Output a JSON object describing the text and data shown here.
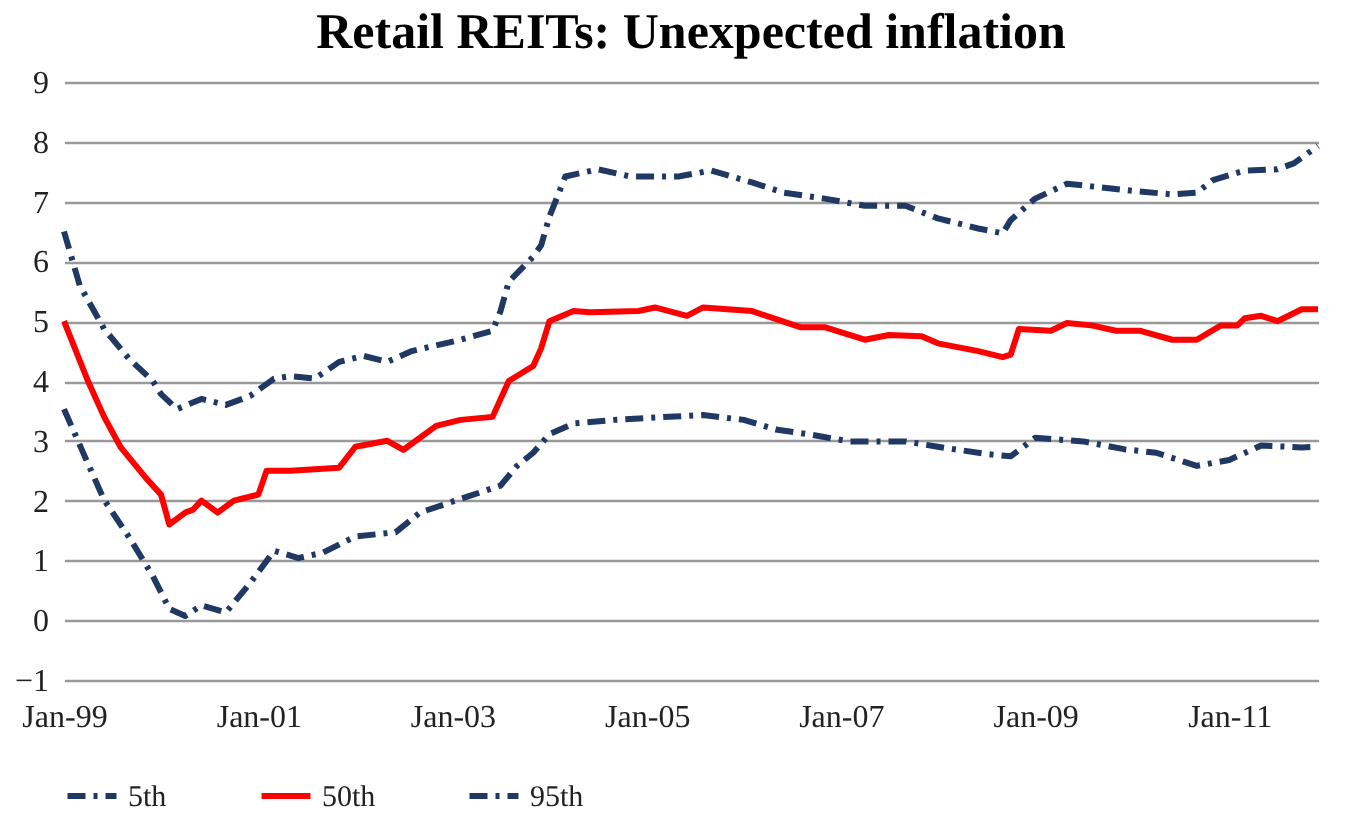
{
  "chart_data": {
    "type": "line",
    "title": "Retail REITs: Unexpected inflation",
    "xlim": [
      "1999-01",
      "2011-12"
    ],
    "xticks": [
      {
        "value": "1999-01",
        "label": "Jan-99"
      },
      {
        "value": "2001-01",
        "label": "Jan-01"
      },
      {
        "value": "2003-01",
        "label": "Jan-03"
      },
      {
        "value": "2005-01",
        "label": "Jan-05"
      },
      {
        "value": "2007-01",
        "label": "Jan-07"
      },
      {
        "value": "2009-01",
        "label": "Jan-09"
      },
      {
        "value": "2011-01",
        "label": "Jan-11"
      }
    ],
    "ylim": [
      -1,
      9
    ],
    "yticks": [
      -1,
      0,
      1,
      2,
      3,
      4,
      5,
      6,
      7,
      8,
      9
    ],
    "grid": "y",
    "legend": "bottom",
    "marker": "none",
    "series": [
      {
        "name": "5th",
        "color": "#1f3864",
        "line_style": "dashed",
        "x": [
          "1999-01",
          "1999-04",
          "1999-06",
          "1999-09",
          "1999-12",
          "2000-02",
          "2000-04",
          "2000-06",
          "2000-09",
          "2000-12",
          "2001-03",
          "2001-06",
          "2001-09",
          "2002-01",
          "2002-06",
          "2002-09",
          "2003-03",
          "2003-07",
          "2003-09",
          "2003-11",
          "2004-01",
          "2004-04",
          "2004-09",
          "2005-02",
          "2005-08",
          "2006-01",
          "2006-05",
          "2006-09",
          "2007-02",
          "2007-09",
          "2008-01",
          "2008-07",
          "2008-10",
          "2009-01",
          "2009-07",
          "2009-12",
          "2010-04",
          "2010-09",
          "2011-01",
          "2011-05",
          "2011-10",
          "2011-12"
        ],
        "values": [
          3.53,
          2.62,
          2.01,
          1.4,
          0.74,
          0.19,
          0.07,
          0.25,
          0.13,
          0.62,
          1.16,
          1.04,
          1.13,
          1.4,
          1.47,
          1.8,
          2.07,
          2.25,
          2.58,
          2.8,
          3.11,
          3.29,
          3.35,
          3.39,
          3.43,
          3.35,
          3.19,
          3.11,
          2.99,
          2.99,
          2.9,
          2.78,
          2.74,
          3.05,
          2.99,
          2.86,
          2.8,
          2.58,
          2.68,
          2.92,
          2.89,
          2.9
        ]
      },
      {
        "name": "50th",
        "color": "#ff0000",
        "line_style": "solid",
        "x": [
          "1999-01",
          "1999-04",
          "1999-06",
          "1999-08",
          "1999-11",
          "2000-01",
          "2000-02",
          "2000-04",
          "2000-05",
          "2000-06",
          "2000-08",
          "2000-10",
          "2001-01",
          "2001-02",
          "2001-05",
          "2001-11",
          "2002-01",
          "2002-05",
          "2002-07",
          "2002-11",
          "2003-02",
          "2003-06",
          "2003-08",
          "2003-11",
          "2003-12",
          "2004-01",
          "2004-04",
          "2004-06",
          "2004-12",
          "2005-02",
          "2005-06",
          "2005-08",
          "2006-02",
          "2006-08",
          "2006-11",
          "2007-04",
          "2007-07",
          "2007-11",
          "2008-01",
          "2008-06",
          "2008-09",
          "2008-10",
          "2008-11",
          "2009-03",
          "2009-05",
          "2009-08",
          "2009-11",
          "2010-02",
          "2010-06",
          "2010-09",
          "2010-12",
          "2011-02",
          "2011-03",
          "2011-05",
          "2011-07",
          "2011-10",
          "2011-12"
        ],
        "values": [
          5.0,
          4.0,
          3.4,
          2.9,
          2.4,
          2.1,
          1.6,
          1.8,
          1.85,
          2.0,
          1.8,
          2.0,
          2.1,
          2.5,
          2.5,
          2.55,
          2.9,
          3.0,
          2.85,
          3.25,
          3.35,
          3.4,
          4.0,
          4.25,
          4.55,
          5.0,
          5.17,
          5.15,
          5.17,
          5.23,
          5.09,
          5.23,
          5.17,
          4.9,
          4.9,
          4.69,
          4.77,
          4.75,
          4.63,
          4.5,
          4.4,
          4.44,
          4.87,
          4.84,
          4.97,
          4.93,
          4.84,
          4.84,
          4.69,
          4.69,
          4.93,
          4.93,
          5.05,
          5.09,
          5.0,
          5.2,
          5.2
        ]
      },
      {
        "name": "95th",
        "color": "#1f3864",
        "line_style": "dashed",
        "x": [
          "1999-01",
          "1999-03",
          "1999-06",
          "1999-09",
          "1999-12",
          "2000-01",
          "2000-03",
          "2000-06",
          "2000-09",
          "2000-12",
          "2001-03",
          "2001-05",
          "2001-08",
          "2001-11",
          "2002-02",
          "2002-05",
          "2002-08",
          "2003-02",
          "2003-06",
          "2003-07",
          "2003-08",
          "2003-11",
          "2003-12",
          "2004-01",
          "2004-03",
          "2004-07",
          "2004-11",
          "2004-12",
          "2005-05",
          "2005-09",
          "2006-02",
          "2006-06",
          "2006-11",
          "2007-04",
          "2007-09",
          "2008-01",
          "2008-06",
          "2008-09",
          "2008-10",
          "2009-01",
          "2009-05",
          "2009-09",
          "2010-01",
          "2010-06",
          "2010-09",
          "2010-11",
          "2011-03",
          "2011-07",
          "2011-09",
          "2011-12"
        ],
        "values": [
          6.5,
          5.6,
          4.87,
          4.38,
          4.0,
          3.78,
          3.53,
          3.7,
          3.6,
          3.75,
          4.04,
          4.08,
          4.04,
          4.32,
          4.42,
          4.32,
          4.5,
          4.69,
          4.84,
          5.17,
          5.66,
          6.08,
          6.27,
          6.75,
          7.42,
          7.54,
          7.42,
          7.42,
          7.42,
          7.52,
          7.32,
          7.15,
          7.05,
          6.93,
          6.93,
          6.72,
          6.55,
          6.47,
          6.69,
          7.05,
          7.3,
          7.24,
          7.18,
          7.12,
          7.15,
          7.36,
          7.52,
          7.54,
          7.64,
          7.93
        ]
      }
    ]
  }
}
